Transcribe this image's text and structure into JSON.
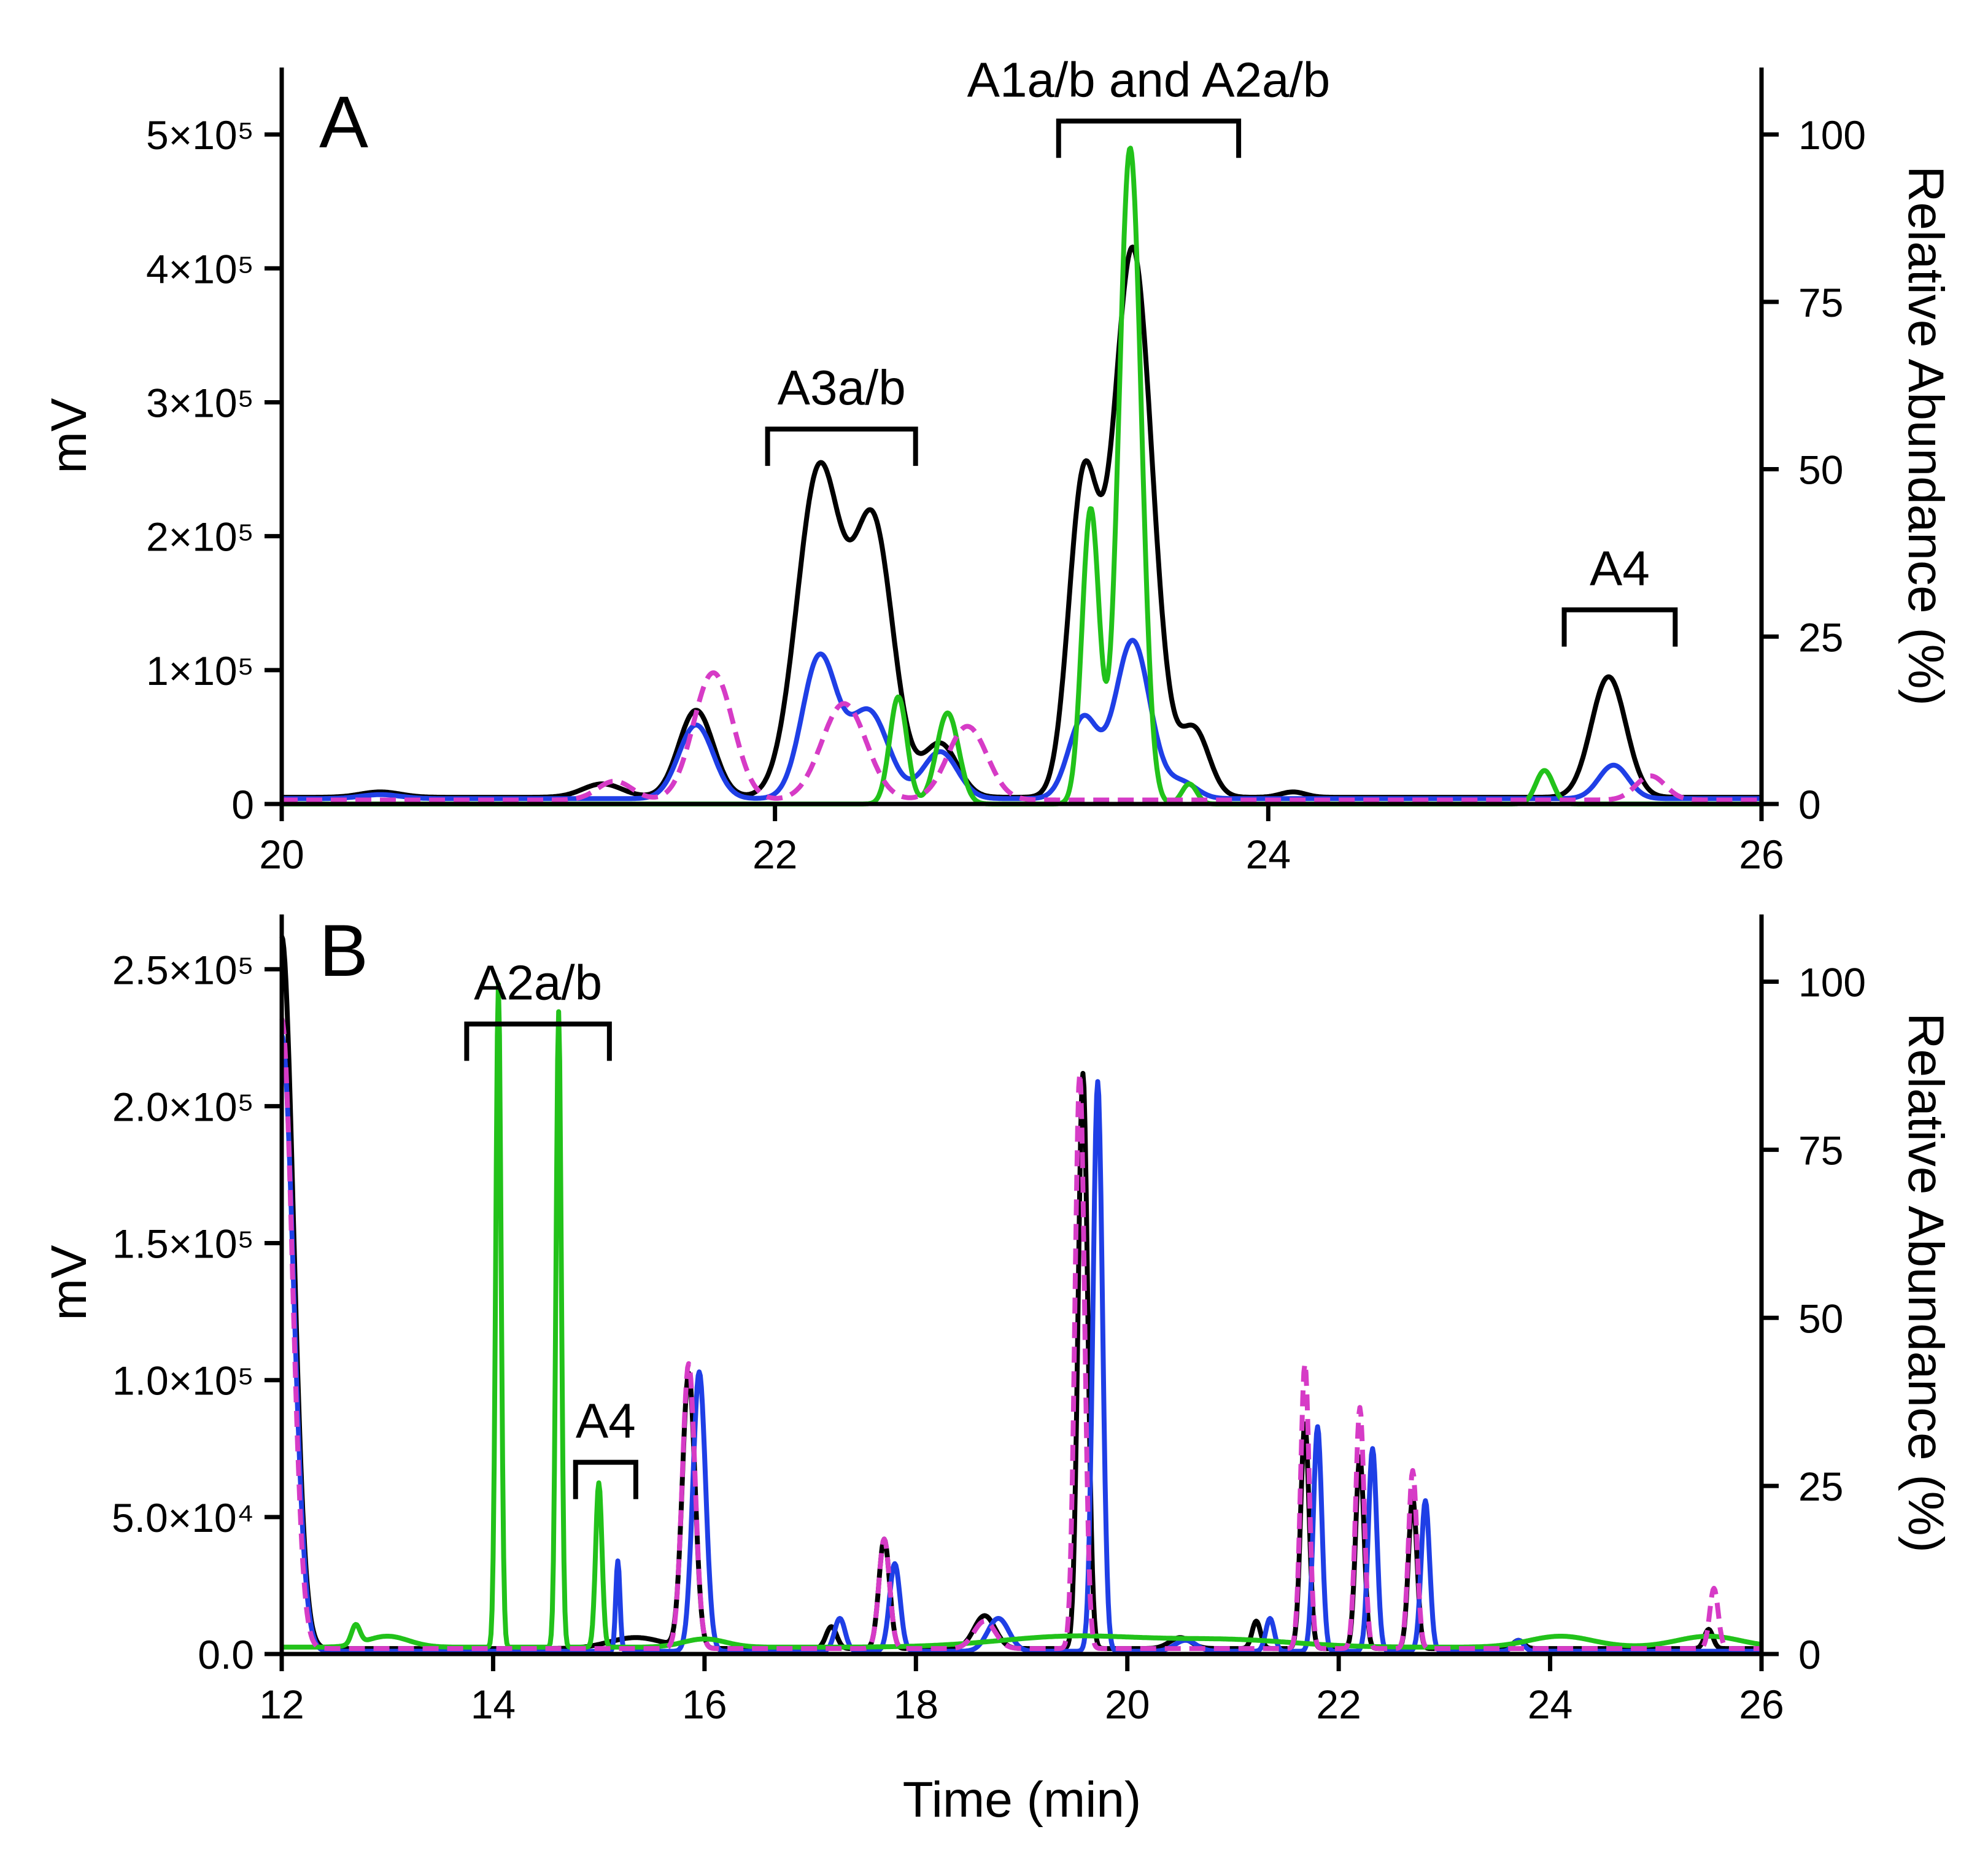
{
  "figure": {
    "x_title": "Time (min)",
    "colors": {
      "black": "#000000",
      "blue": "#1f3fe6",
      "green": "#22c21a",
      "magenta": "#d63bc6"
    }
  },
  "chart_data": [
    {
      "type": "line",
      "panel_label": "A",
      "xlabel": "Time (min)",
      "ylabel": "mV",
      "y2label": "Relative Abundance (%)",
      "xlim": [
        20,
        26
      ],
      "ylim": [
        0,
        550000
      ],
      "y2lim": [
        0,
        110
      ],
      "x_ticks": [
        20,
        22,
        24,
        26
      ],
      "x_tick_labels": [
        "20",
        "22",
        "24",
        "26"
      ],
      "y_ticks": [
        0,
        100000,
        200000,
        300000,
        400000,
        500000
      ],
      "y_tick_labels": [
        "0",
        "1×10⁵",
        "2×10⁵",
        "3×10⁵",
        "4×10⁵",
        "5×10⁵"
      ],
      "y2_ticks": [
        0,
        25,
        50,
        75,
        100
      ],
      "y2_tick_labels": [
        "0",
        "25",
        "50",
        "75",
        "100"
      ],
      "brackets": [
        {
          "label": "A3a/b",
          "x_start": 21.97,
          "x_end": 22.57,
          "level": 280000
        },
        {
          "label": "A1a/b and A2a/b",
          "x_start": 23.15,
          "x_end": 23.88,
          "level": 510000
        },
        {
          "label": "A4",
          "x_start": 25.2,
          "x_end": 25.65,
          "level": 145000
        }
      ],
      "series": [
        {
          "name": "black",
          "style": "solid",
          "color": "#000000",
          "baseline": 5000,
          "peaks": [
            [
              20.4,
              4000,
              0.08
            ],
            [
              21.3,
              10000,
              0.08
            ],
            [
              21.68,
              65000,
              0.07
            ],
            [
              22.18,
              245000,
              0.09
            ],
            [
              22.4,
              200000,
              0.08
            ],
            [
              22.67,
              40000,
              0.07
            ],
            [
              23.25,
              230000,
              0.06
            ],
            [
              23.45,
              410000,
              0.08
            ],
            [
              23.7,
              50000,
              0.06
            ],
            [
              24.1,
              4000,
              0.05
            ],
            [
              25.38,
              90000,
              0.07
            ]
          ]
        },
        {
          "name": "blue",
          "style": "solid",
          "color": "#1f3fe6",
          "baseline": 4000,
          "peaks": [
            [
              20.4,
              3000,
              0.08
            ],
            [
              21.68,
              55000,
              0.07
            ],
            [
              22.18,
              105000,
              0.07
            ],
            [
              22.38,
              65000,
              0.08
            ],
            [
              22.67,
              35000,
              0.07
            ],
            [
              23.25,
              60000,
              0.06
            ],
            [
              23.45,
              118000,
              0.07
            ],
            [
              23.65,
              12000,
              0.06
            ],
            [
              25.4,
              25000,
              0.06
            ]
          ]
        },
        {
          "name": "green",
          "style": "solid",
          "color": "#22c21a",
          "baseline": 0,
          "peaks": [
            [
              22.5,
              80000,
              0.035
            ],
            [
              22.7,
              68000,
              0.045
            ],
            [
              23.28,
              220000,
              0.035
            ],
            [
              23.44,
              490000,
              0.045
            ],
            [
              23.68,
              15000,
              0.03
            ],
            [
              25.12,
              25000,
              0.035
            ]
          ]
        },
        {
          "name": "magenta",
          "style": "dashed",
          "color": "#d63bc6",
          "baseline": 3000,
          "peaks": [
            [
              21.35,
              14000,
              0.07
            ],
            [
              21.75,
              95000,
              0.08
            ],
            [
              22.28,
              72000,
              0.09
            ],
            [
              22.78,
              55000,
              0.08
            ],
            [
              25.55,
              18000,
              0.06
            ]
          ]
        }
      ]
    },
    {
      "type": "line",
      "panel_label": "B",
      "xlabel": "Time (min)",
      "ylabel": "mV",
      "y2label": "Relative Abundance (%)",
      "xlim": [
        12,
        26
      ],
      "ylim": [
        0,
        270000
      ],
      "y2lim": [
        0,
        110
      ],
      "x_ticks": [
        12,
        14,
        16,
        18,
        20,
        22,
        24,
        26
      ],
      "x_tick_labels": [
        "12",
        "14",
        "16",
        "18",
        "20",
        "22",
        "24",
        "26"
      ],
      "y_ticks": [
        0,
        50000,
        100000,
        150000,
        200000,
        250000
      ],
      "y_tick_labels": [
        "0.0",
        "5.0×10⁴",
        "1.0×10⁵",
        "1.5×10⁵",
        "2.0×10⁵",
        "2.5×10⁵"
      ],
      "y2_ticks": [
        0,
        25,
        50,
        75,
        100
      ],
      "y2_tick_labels": [
        "0",
        "25",
        "50",
        "75",
        "100"
      ],
      "brackets": [
        {
          "label": "A2a/b",
          "x_start": 13.75,
          "x_end": 15.1,
          "level": 230000
        },
        {
          "label": "A4",
          "x_start": 14.78,
          "x_end": 15.35,
          "level": 70000
        }
      ],
      "series": [
        {
          "name": "black",
          "style": "solid",
          "color": "#000000",
          "baseline": 2000,
          "peaks": [
            [
              12.0,
              260000,
              0.11
            ],
            [
              15.35,
              4000,
              0.25
            ],
            [
              15.85,
              100000,
              0.06
            ],
            [
              17.2,
              8000,
              0.05
            ],
            [
              17.7,
              40000,
              0.05
            ],
            [
              18.65,
              12000,
              0.1
            ],
            [
              19.58,
              210000,
              0.045
            ],
            [
              20.5,
              4000,
              0.1
            ],
            [
              21.22,
              10000,
              0.04
            ],
            [
              21.68,
              82000,
              0.04
            ],
            [
              22.2,
              70000,
              0.04
            ],
            [
              22.7,
              55000,
              0.04
            ],
            [
              23.7,
              3000,
              0.05
            ],
            [
              25.5,
              7000,
              0.04
            ]
          ]
        },
        {
          "name": "blue",
          "style": "solid",
          "color": "#1f3fe6",
          "baseline": 1000,
          "peaks": [
            [
              12.0,
              225000,
              0.11
            ],
            [
              15.18,
              33000,
              0.02
            ],
            [
              15.95,
              102000,
              0.06
            ],
            [
              17.28,
              12000,
              0.05
            ],
            [
              17.8,
              32000,
              0.05
            ],
            [
              18.78,
              12000,
              0.1
            ],
            [
              19.72,
              208000,
              0.045
            ],
            [
              20.55,
              4000,
              0.1
            ],
            [
              21.35,
              12000,
              0.04
            ],
            [
              21.8,
              82000,
              0.04
            ],
            [
              22.32,
              74000,
              0.04
            ],
            [
              22.82,
              55000,
              0.04
            ],
            [
              23.7,
              4000,
              0.05
            ]
          ]
        },
        {
          "name": "green",
          "style": "solid",
          "color": "#22c21a",
          "baseline": 2500,
          "peaks": [
            [
              12.7,
              7000,
              0.04
            ],
            [
              13.0,
              4000,
              0.2
            ],
            [
              14.05,
              242000,
              0.025
            ],
            [
              14.62,
              232000,
              0.025
            ],
            [
              15.0,
              60000,
              0.03
            ],
            [
              16.0,
              3000,
              0.2
            ],
            [
              19.5,
              4000,
              0.7
            ],
            [
              21.0,
              2500,
              0.6
            ],
            [
              24.1,
              4000,
              0.3
            ],
            [
              25.5,
              4000,
              0.3
            ]
          ]
        },
        {
          "name": "magenta",
          "style": "dashed",
          "color": "#d63bc6",
          "baseline": 2000,
          "peaks": [
            [
              12.0,
              230000,
              0.1
            ],
            [
              15.85,
              104000,
              0.06
            ],
            [
              17.7,
              40000,
              0.05
            ],
            [
              18.65,
              10000,
              0.1
            ],
            [
              19.55,
              210000,
              0.045
            ],
            [
              21.68,
              104000,
              0.04
            ],
            [
              22.2,
              88000,
              0.04
            ],
            [
              22.7,
              65000,
              0.04
            ],
            [
              25.55,
              22000,
              0.04
            ]
          ]
        }
      ]
    }
  ]
}
